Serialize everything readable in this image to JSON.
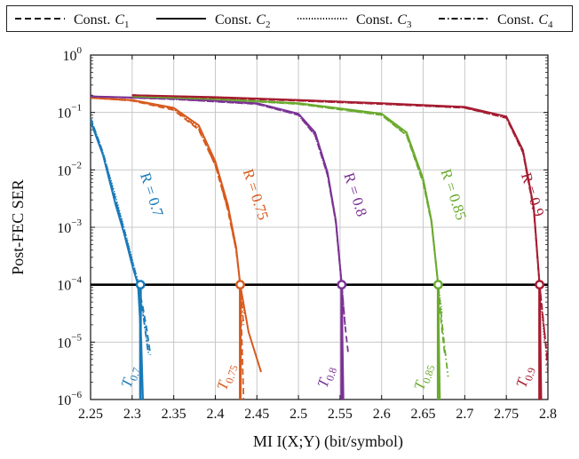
{
  "chart_data": {
    "type": "line",
    "title": "",
    "xlabel": "MI I(X;Y) (bit/symbol)",
    "ylabel": "Post-FEC SER",
    "xlim": [
      2.25,
      2.8
    ],
    "ylim": [
      1e-06,
      1
    ],
    "yscale": "log",
    "grid": true,
    "legend_position": "top",
    "x_ticks": [
      "2.25",
      "2.3",
      "2.35",
      "2.4",
      "2.45",
      "2.5",
      "2.55",
      "2.6",
      "2.65",
      "2.7",
      "2.75",
      "2.8"
    ],
    "y_ticks": [
      {
        "base": "10",
        "exp": "0"
      },
      {
        "base": "10",
        "exp": "−1"
      },
      {
        "base": "10",
        "exp": "−2"
      },
      {
        "base": "10",
        "exp": "−3"
      },
      {
        "base": "10",
        "exp": "−4"
      },
      {
        "base": "10",
        "exp": "−5"
      },
      {
        "base": "10",
        "exp": "−6"
      }
    ],
    "legend": [
      {
        "label": "Const. C1",
        "text": "Const.",
        "sub": "1",
        "dash": "dashed"
      },
      {
        "label": "Const. C2",
        "text": "Const.",
        "sub": "2",
        "dash": "solid"
      },
      {
        "label": "Const. C3",
        "text": "Const.",
        "sub": "3",
        "dash": "dotted"
      },
      {
        "label": "Const. C4",
        "text": "Const.",
        "sub": "4",
        "dash": "dashdot"
      }
    ],
    "target_ser": 0.0001,
    "rate_groups": [
      {
        "rate_label": "R = 0.7",
        "threshold_label": "T",
        "threshold_sub": "0.7",
        "color": "#1a7ab8",
        "threshold": 2.31,
        "curves": {
          "c1": {
            "x": [
              2.25,
              2.265,
              2.28,
              2.29,
              2.3,
              2.307,
              2.313,
              2.318,
              2.322
            ],
            "y": [
              0.08,
              0.02,
              0.003,
              0.0009,
              0.00025,
              0.0001,
              4e-05,
              1.5e-05,
              6e-06
            ]
          },
          "c2": {
            "x": [
              2.25,
              2.265,
              2.28,
              2.29,
              2.3,
              2.307,
              2.311,
              2.313
            ],
            "y": [
              0.07,
              0.018,
              0.0025,
              0.0008,
              0.00022,
              0.0001,
              1e-05,
              1e-06
            ]
          },
          "c3": {
            "x": [
              2.25,
              2.265,
              2.28,
              2.29,
              2.3,
              2.308,
              2.315,
              2.32
            ],
            "y": [
              0.08,
              0.02,
              0.0035,
              0.001,
              0.00028,
              0.0001,
              2e-05,
              6e-06
            ]
          },
          "c4": {
            "x": [
              2.25,
              2.265,
              2.28,
              2.29,
              2.3,
              2.308,
              2.314,
              2.319
            ],
            "y": [
              0.075,
              0.019,
              0.003,
              0.00095,
              0.00026,
              0.0001,
              2.5e-05,
              7e-06
            ]
          }
        }
      },
      {
        "rate_label": "R = 0.75",
        "threshold_label": "T",
        "threshold_sub": "0.75",
        "color": "#d75a1e",
        "threshold": 2.43,
        "curves": {
          "c1": {
            "x": [
              2.25,
              2.3,
              2.35,
              2.38,
              2.4,
              2.415,
              2.425,
              2.43,
              2.432,
              2.434
            ],
            "y": [
              0.18,
              0.16,
              0.11,
              0.05,
              0.012,
              0.002,
              0.0004,
              0.0001,
              1e-05,
              1e-06
            ]
          },
          "c2": {
            "x": [
              2.25,
              2.3,
              2.35,
              2.38,
              2.4,
              2.415,
              2.425,
              2.43,
              2.44,
              2.455
            ],
            "y": [
              0.18,
              0.165,
              0.12,
              0.06,
              0.014,
              0.0025,
              0.00045,
              0.0001,
              1.5e-05,
              3e-06
            ]
          },
          "c3": {
            "x": [
              2.25,
              2.3,
              2.35,
              2.38,
              2.4,
              2.415,
              2.425,
              2.43,
              2.435
            ],
            "y": [
              0.18,
              0.16,
              0.115,
              0.055,
              0.013,
              0.0022,
              0.00042,
              0.0001,
              3e-05
            ]
          },
          "c4": {
            "x": [
              2.25,
              2.3,
              2.35,
              2.38,
              2.4,
              2.415,
              2.425,
              2.43,
              2.434
            ],
            "y": [
              0.18,
              0.162,
              0.115,
              0.052,
              0.012,
              0.0021,
              0.0004,
              0.0001,
              2e-05
            ]
          }
        }
      },
      {
        "rate_label": "R = 0.8",
        "threshold_label": "T",
        "threshold_sub": "0.8",
        "color": "#7b3294",
        "threshold": 2.552,
        "curves": {
          "c1": {
            "x": [
              2.25,
              2.35,
              2.45,
              2.5,
              2.52,
              2.535,
              2.545,
              2.552,
              2.556,
              2.56
            ],
            "y": [
              0.19,
              0.17,
              0.14,
              0.09,
              0.04,
              0.008,
              0.0012,
              0.0001,
              2e-05,
              6e-06
            ]
          },
          "c2": {
            "x": [
              2.25,
              2.35,
              2.45,
              2.5,
              2.52,
              2.535,
              2.545,
              2.552,
              2.553,
              2.554
            ],
            "y": [
              0.19,
              0.175,
              0.145,
              0.095,
              0.045,
              0.009,
              0.0013,
              0.0001,
              1e-05,
              1e-06
            ]
          },
          "c3": {
            "x": [
              2.25,
              2.35,
              2.45,
              2.5,
              2.52,
              2.535,
              2.545,
              2.552,
              2.555
            ],
            "y": [
              0.19,
              0.17,
              0.14,
              0.09,
              0.04,
              0.008,
              0.0012,
              0.0001,
              3e-05
            ]
          },
          "c4": {
            "x": [
              2.25,
              2.35,
              2.45,
              2.5,
              2.52,
              2.535,
              2.545,
              2.552,
              2.556
            ],
            "y": [
              0.19,
              0.172,
              0.142,
              0.092,
              0.042,
              0.0085,
              0.00125,
              0.0001,
              2e-05
            ]
          }
        }
      },
      {
        "rate_label": "R = 0.85",
        "threshold_label": "T",
        "threshold_sub": "0.85",
        "color": "#6aaa2e",
        "threshold": 2.668,
        "curves": {
          "c1": {
            "x": [
              2.3,
              2.4,
              2.5,
              2.6,
              2.63,
              2.65,
              2.66,
              2.668,
              2.672,
              2.676
            ],
            "y": [
              0.19,
              0.17,
              0.14,
              0.09,
              0.04,
              0.006,
              0.0012,
              0.0001,
              2e-05,
              6e-06
            ]
          },
          "c2": {
            "x": [
              2.3,
              2.4,
              2.5,
              2.6,
              2.63,
              2.65,
              2.66,
              2.668,
              2.669,
              2.67
            ],
            "y": [
              0.19,
              0.172,
              0.145,
              0.095,
              0.045,
              0.007,
              0.0013,
              0.0001,
              1e-05,
              1e-06
            ]
          },
          "c3": {
            "x": [
              2.3,
              2.4,
              2.5,
              2.6,
              2.63,
              2.65,
              2.66,
              2.668,
              2.673
            ],
            "y": [
              0.19,
              0.17,
              0.14,
              0.09,
              0.04,
              0.006,
              0.0012,
              0.0001,
              3e-05
            ]
          },
          "c4": {
            "x": [
              2.3,
              2.4,
              2.5,
              2.6,
              2.63,
              2.65,
              2.66,
              2.668,
              2.675,
              2.68
            ],
            "y": [
              0.19,
              0.171,
              0.142,
              0.092,
              0.042,
              0.0065,
              0.00125,
              0.0001,
              1e-05,
              2.5e-06
            ]
          }
        }
      },
      {
        "rate_label": "R = 0.9",
        "threshold_label": "T",
        "threshold_sub": "0.9",
        "color": "#a51c30",
        "threshold": 2.79,
        "curves": {
          "c1": {
            "x": [
              2.3,
              2.4,
              2.5,
              2.6,
              2.7,
              2.75,
              2.77,
              2.783,
              2.79,
              2.795,
              2.8
            ],
            "y": [
              0.2,
              0.18,
              0.16,
              0.14,
              0.12,
              0.08,
              0.02,
              0.002,
              0.0001,
              2e-05,
              4e-06
            ]
          },
          "c2": {
            "x": [
              2.3,
              2.4,
              2.5,
              2.6,
              2.7,
              2.75,
              2.77,
              2.783,
              2.79,
              2.791,
              2.792
            ],
            "y": [
              0.2,
              0.185,
              0.165,
              0.145,
              0.125,
              0.085,
              0.022,
              0.0022,
              0.0001,
              1e-05,
              1e-06
            ]
          },
          "c3": {
            "x": [
              2.3,
              2.4,
              2.5,
              2.6,
              2.7,
              2.75,
              2.77,
              2.783,
              2.79,
              2.796
            ],
            "y": [
              0.2,
              0.18,
              0.16,
              0.14,
              0.12,
              0.08,
              0.02,
              0.002,
              0.0001,
              1e-05
            ]
          },
          "c4": {
            "x": [
              2.3,
              2.4,
              2.5,
              2.6,
              2.7,
              2.75,
              2.77,
              2.783,
              2.79,
              2.797,
              2.8
            ],
            "y": [
              0.2,
              0.182,
              0.162,
              0.142,
              0.122,
              0.082,
              0.021,
              0.0021,
              0.0001,
              1e-05,
              3e-06
            ]
          }
        }
      }
    ]
  }
}
